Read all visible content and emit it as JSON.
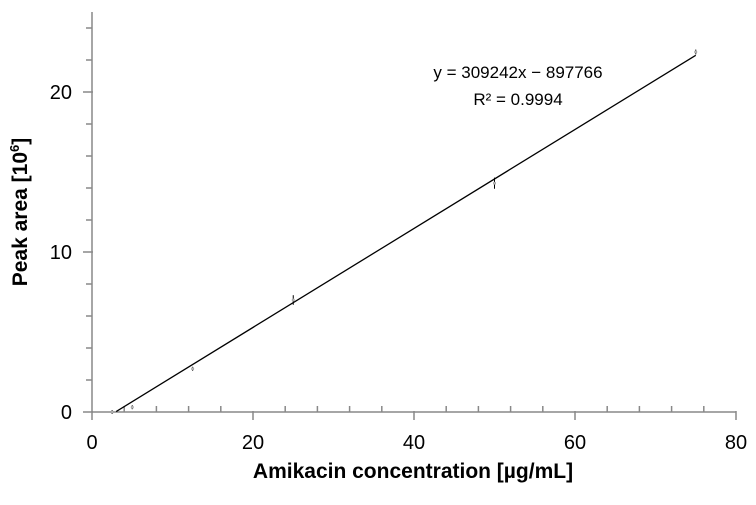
{
  "chart_data": {
    "type": "scatter",
    "title": "",
    "xlabel": "Amikacin concentration [µg/mL]",
    "ylabel_main": "Peak area [10",
    "ylabel_sup": "6",
    "ylabel_end": "]",
    "xlim": [
      0,
      80
    ],
    "ylim": [
      0,
      25
    ],
    "x_ticks": [
      0,
      20,
      40,
      60,
      80
    ],
    "x_tick_labels": [
      "0",
      "20",
      "40",
      "60",
      "80"
    ],
    "y_ticks": [
      0,
      10,
      20
    ],
    "y_tick_labels": [
      "0",
      "10",
      "20"
    ],
    "grid": false,
    "series": [
      {
        "points": [
          {
            "x": 2.5,
            "y": 0.0
          },
          {
            "x": 5,
            "y": 0.3
          },
          {
            "x": 12.5,
            "y": 2.7
          },
          {
            "x": 25,
            "y": 7.0
          },
          {
            "x": 50,
            "y": 14.3
          },
          {
            "x": 75,
            "y": 22.5
          }
        ],
        "error_bars": [
          0.0,
          0.0,
          0.1,
          0.3,
          0.35,
          0.15
        ]
      }
    ],
    "trendline": {
      "slope": 309242,
      "intercept": -897766,
      "scale": 1000000,
      "x_range": [
        3,
        75
      ],
      "equation": "y = 309242x − 897766",
      "r2": "R² = 0.9994"
    }
  }
}
